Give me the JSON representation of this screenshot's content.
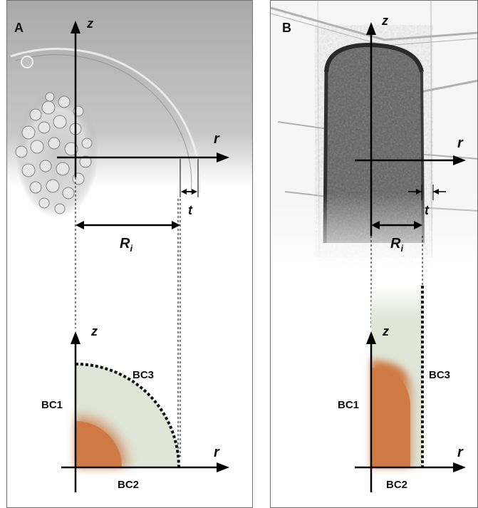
{
  "panel_a": {
    "letter": "A",
    "axis_z": "z",
    "axis_r": "r",
    "label_t": "t",
    "label_R": "R",
    "label_R_sub": "i",
    "schematic": {
      "axis_z": "z",
      "axis_r": "r",
      "bc1": "BC1",
      "bc2": "BC2",
      "bc3": "BC3"
    }
  },
  "panel_b": {
    "letter": "B",
    "axis_z": "z",
    "axis_r": "r",
    "label_t": "t",
    "label_R": "R",
    "label_R_sub": "i",
    "schematic": {
      "axis_z": "z",
      "axis_r": "r",
      "bc1": "BC1",
      "bc2": "BC2",
      "bc3": "BC3"
    }
  },
  "colors": {
    "tissue_core": "#cf7a45",
    "shell": "#dfe6d8",
    "axis": "#000000",
    "dashed_boundary": "#111111"
  }
}
